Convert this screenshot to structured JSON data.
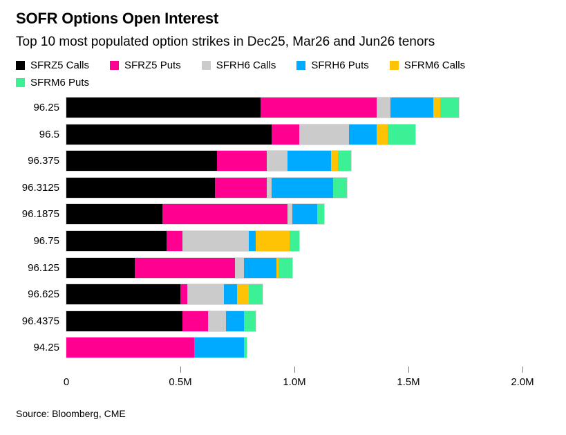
{
  "header": {
    "title": "SOFR Options Open Interest",
    "subtitle": "Top 10 most populated option strikes in Dec25, Mar26 and Jun26 tenors"
  },
  "legend": [
    {
      "label": "SFRZ5 Calls",
      "color": "#000000"
    },
    {
      "label": "SFRZ5 Puts",
      "color": "#FF0090"
    },
    {
      "label": "SFRH6 Calls",
      "color": "#CBCBCB"
    },
    {
      "label": "SFRH6 Puts",
      "color": "#00ABFF"
    },
    {
      "label": "SFRM6 Calls",
      "color": "#FFC306"
    },
    {
      "label": "SFRM6 Puts",
      "color": "#3CF096"
    }
  ],
  "chart_data": {
    "type": "bar",
    "orientation": "horizontal",
    "stacked": true,
    "title": "SOFR Options Open Interest",
    "subtitle": "Top 10 most populated option strikes in Dec25, Mar26 and Jun26 tenors",
    "xlabel": "",
    "ylabel": "strike",
    "unit": "M contracts",
    "xlim": [
      0,
      2.0
    ],
    "grid": false,
    "legend_position": "top",
    "categories": [
      "96.25",
      "96.5",
      "96.375",
      "96.3125",
      "96.1875",
      "96.75",
      "96.125",
      "96.625",
      "96.4375",
      "94.25"
    ],
    "series": [
      {
        "name": "SFRZ5 Calls",
        "color": "#000000",
        "values": [
          0.85,
          0.9,
          0.66,
          0.65,
          0.42,
          0.44,
          0.3,
          0.5,
          0.51,
          0.0
        ]
      },
      {
        "name": "SFRZ5 Puts",
        "color": "#FF0090",
        "values": [
          0.51,
          0.12,
          0.22,
          0.23,
          0.55,
          0.07,
          0.44,
          0.03,
          0.11,
          0.56
        ]
      },
      {
        "name": "SFRH6 Calls",
        "color": "#CBCBCB",
        "values": [
          0.06,
          0.22,
          0.09,
          0.02,
          0.02,
          0.29,
          0.04,
          0.16,
          0.08,
          0.0
        ]
      },
      {
        "name": "SFRH6 Puts",
        "color": "#00ABFF",
        "values": [
          0.19,
          0.12,
          0.19,
          0.27,
          0.11,
          0.03,
          0.14,
          0.06,
          0.08,
          0.22
        ]
      },
      {
        "name": "SFRM6 Calls",
        "color": "#FFC306",
        "values": [
          0.03,
          0.05,
          0.03,
          0.0,
          0.0,
          0.15,
          0.01,
          0.05,
          0.0,
          0.0
        ]
      },
      {
        "name": "SFRM6 Puts",
        "color": "#3CF096",
        "values": [
          0.08,
          0.12,
          0.06,
          0.06,
          0.03,
          0.04,
          0.06,
          0.06,
          0.05,
          0.01
        ]
      }
    ],
    "totals": [
      1.72,
      1.53,
      1.25,
      1.23,
      1.13,
      1.02,
      0.99,
      0.86,
      0.83,
      0.79
    ],
    "x_ticks": [
      {
        "value": 0,
        "label": "0"
      },
      {
        "value": 0.5,
        "label": "0.5M"
      },
      {
        "value": 1.0,
        "label": "1.0M"
      },
      {
        "value": 1.5,
        "label": "1.5M"
      },
      {
        "value": 2.0,
        "label": "2.0M"
      }
    ]
  },
  "source": "Source: Bloomberg, CME"
}
